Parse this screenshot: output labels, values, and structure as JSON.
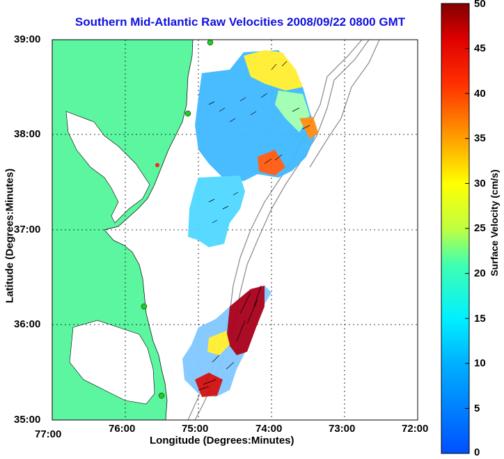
{
  "title": "Southern Mid-Atlantic Raw Velocities 2008/09/22 0800 GMT",
  "xlabel": "Longitude (Degrees:Minutes)",
  "ylabel": "Latitude (Degrees:Minutes)",
  "colorbar_label": "Surface Velocity (cm/s)",
  "x_ticks": [
    "77:00",
    "76:00",
    "75:00",
    "74:00",
    "73:00",
    "72:00"
  ],
  "y_ticks": [
    "39:00",
    "38:00",
    "37:00",
    "36:00",
    "35:00"
  ],
  "colorbar_ticks": [
    "50",
    "45",
    "40",
    "35",
    "30",
    "25",
    "20",
    "15",
    "10",
    "5",
    "0"
  ],
  "colors": {
    "land": "#5cf5a0",
    "title": "#1010e0",
    "contour": "#909090",
    "station": "#22cc22"
  },
  "chart_data": {
    "type": "map",
    "xlim": [
      -77,
      -72
    ],
    "ylim": [
      35,
      39
    ],
    "colorbar_range": [
      0,
      50
    ],
    "grid": true,
    "velocity_regions": [
      {
        "lon": -74.6,
        "lat": 38.4,
        "speed": 12
      },
      {
        "lon": -74.2,
        "lat": 38.85,
        "speed": 26
      },
      {
        "lon": -73.6,
        "lat": 38.1,
        "speed": 38
      },
      {
        "lon": -74.1,
        "lat": 37.65,
        "speed": 42
      },
      {
        "lon": -74.9,
        "lat": 37.2,
        "speed": 12
      },
      {
        "lon": -74.2,
        "lat": 36.2,
        "speed": 48
      },
      {
        "lon": -74.8,
        "lat": 35.3,
        "speed": 40
      }
    ]
  }
}
